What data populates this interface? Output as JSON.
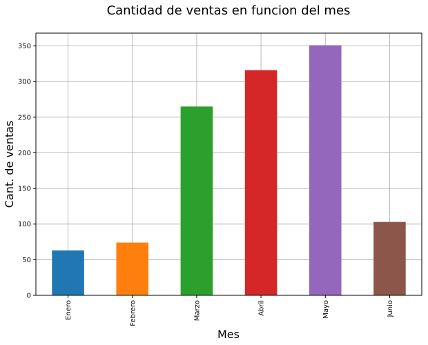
{
  "chart_data": {
    "type": "bar",
    "title": "Cantidad de ventas en funcion del mes",
    "xlabel": "Mes",
    "ylabel": "Cant. de ventas",
    "categories": [
      "Enero",
      "Febrero",
      "Marzo",
      "Abril",
      "Mayo",
      "Junio"
    ],
    "values": [
      63,
      74,
      265,
      316,
      351,
      103
    ],
    "colors": [
      "#1f77b4",
      "#ff7f0e",
      "#2ca02c",
      "#d62728",
      "#9467bd",
      "#8c564b"
    ],
    "ylim": [
      0,
      368
    ],
    "yticks": [
      0,
      50,
      100,
      150,
      200,
      250,
      300,
      350
    ],
    "grid": true,
    "legend": "none"
  }
}
